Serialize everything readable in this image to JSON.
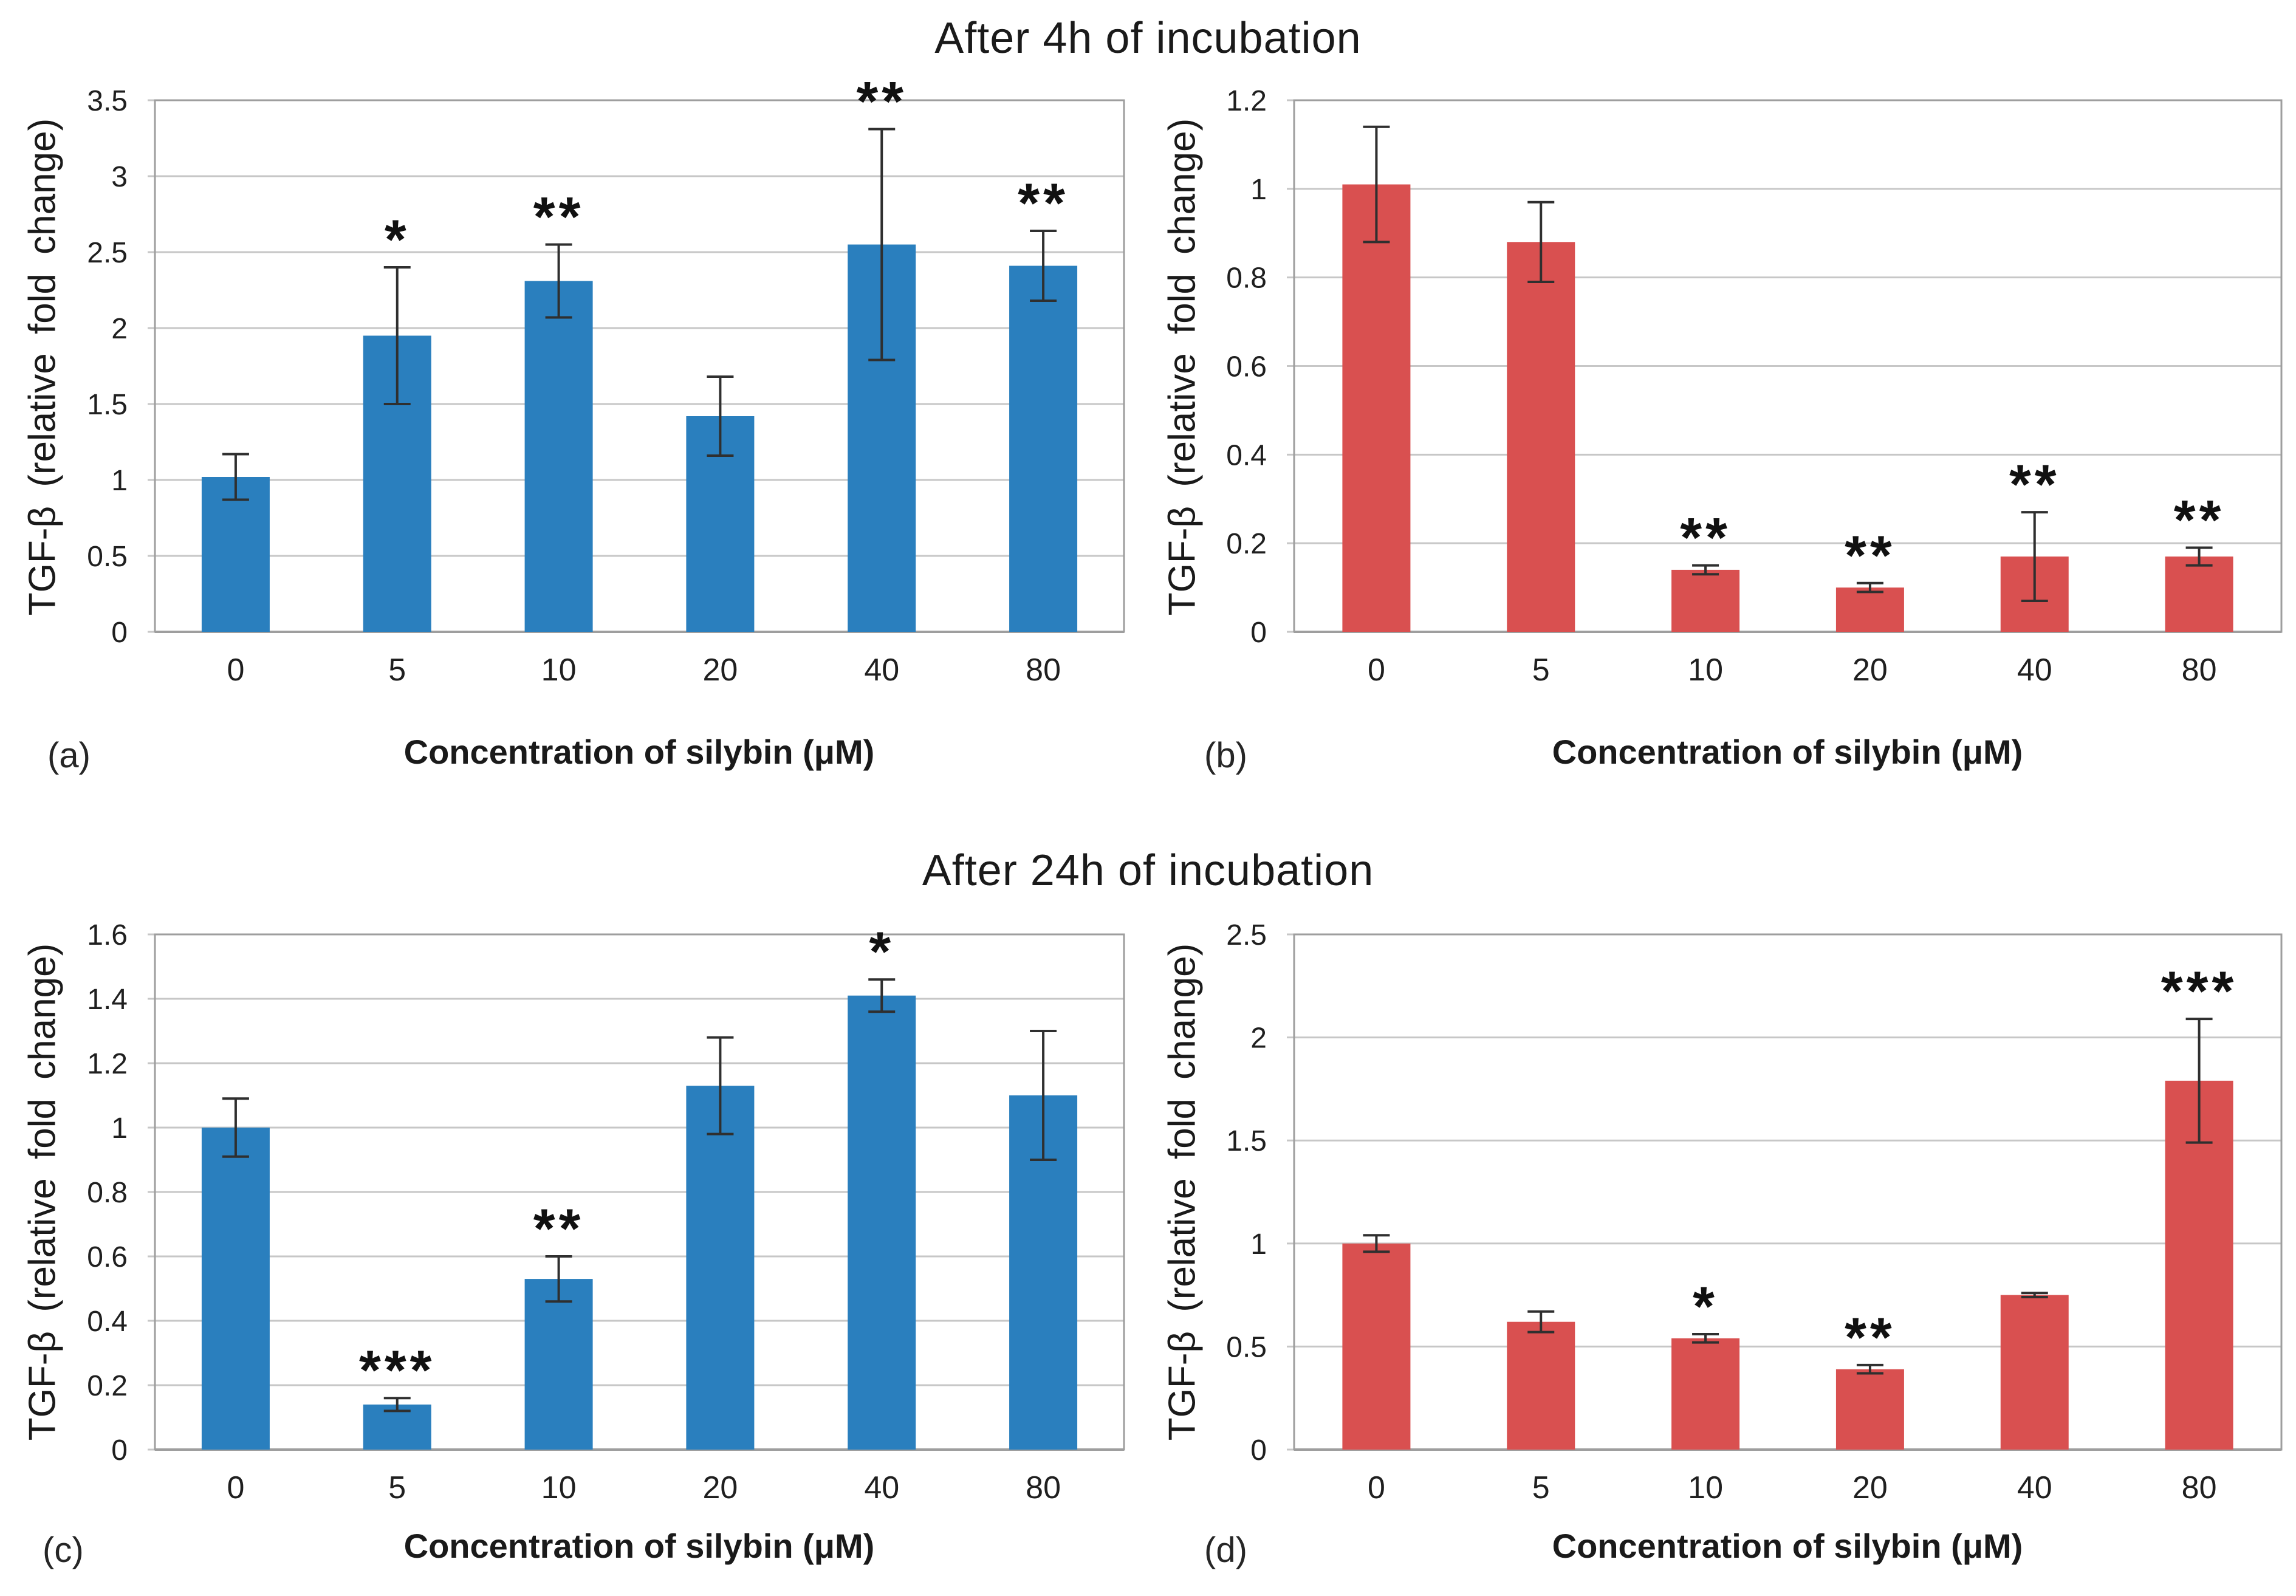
{
  "figure": {
    "title_4h": "After 4h of incubation",
    "title_24h": "After 24h of incubation"
  },
  "axes": {
    "ylabel": "TGF-β  (relative fold change)",
    "xlabel": "Concentration of silybin (μM)"
  },
  "colors": {
    "blue_bar": "#2a7fbe",
    "red_bar": "#d95050",
    "gridline": "#c7c7c7",
    "frame": "#9e9e9e",
    "error_bar": "#2f2f2f",
    "text": "#1f1f1f"
  },
  "chart_data": [
    {
      "id": "a",
      "panel_label": "(a)",
      "group_title": "After 4h of incubation",
      "type": "bar",
      "bar_color": "#2a7fbe",
      "categories": [
        "0",
        "5",
        "10",
        "20",
        "40",
        "80"
      ],
      "values": [
        1.02,
        1.95,
        2.31,
        1.42,
        2.55,
        2.41
      ],
      "errors": [
        0.15,
        0.45,
        0.24,
        0.26,
        0.76,
        0.23
      ],
      "significance": [
        "",
        "*",
        "**",
        "",
        "**",
        "**"
      ],
      "ylim": [
        0,
        3.5
      ],
      "yticks": [
        0,
        0.5,
        1,
        1.5,
        2,
        2.5,
        3,
        3.5
      ],
      "ytick_labels": [
        "0",
        "0.5",
        "1",
        "1.5",
        "2",
        "2.5",
        "3",
        "3.5"
      ],
      "xlabel": "Concentration of silybin (μM)",
      "ylabel": "TGF-β  (relative fold change)",
      "grid": true,
      "legend": "none"
    },
    {
      "id": "b",
      "panel_label": "(b)",
      "group_title": "After 4h of incubation",
      "type": "bar",
      "bar_color": "#d95050",
      "categories": [
        "0",
        "5",
        "10",
        "20",
        "40",
        "80"
      ],
      "values": [
        1.01,
        0.88,
        0.14,
        0.1,
        0.17,
        0.17
      ],
      "errors": [
        0.13,
        0.09,
        0.01,
        0.01,
        0.1,
        0.02
      ],
      "significance": [
        "",
        "",
        "**",
        "**",
        "**",
        "**"
      ],
      "ylim": [
        0,
        1.2
      ],
      "yticks": [
        0,
        0.2,
        0.4,
        0.6,
        0.8,
        1,
        1.2
      ],
      "ytick_labels": [
        "0",
        "0.2",
        "0.4",
        "0.6",
        "0.8",
        "1",
        "1.2"
      ],
      "xlabel": "Concentration of silybin (μM)",
      "ylabel": "TGF-β  (relative fold change)",
      "grid": true,
      "legend": "none"
    },
    {
      "id": "c",
      "panel_label": "(c)",
      "group_title": "After 24h of incubation",
      "type": "bar",
      "bar_color": "#2a7fbe",
      "categories": [
        "0",
        "5",
        "10",
        "20",
        "40",
        "80"
      ],
      "values": [
        1.0,
        0.14,
        0.53,
        1.13,
        1.41,
        1.1
      ],
      "errors": [
        0.09,
        0.02,
        0.07,
        0.15,
        0.05,
        0.2
      ],
      "significance": [
        "",
        "***",
        "**",
        "",
        "*",
        ""
      ],
      "ylim": [
        0,
        1.6
      ],
      "yticks": [
        0,
        0.2,
        0.4,
        0.6,
        0.8,
        1,
        1.2,
        1.4,
        1.6
      ],
      "ytick_labels": [
        "0",
        "0.2",
        "0.4",
        "0.6",
        "0.8",
        "1",
        "1.2",
        "1.4",
        "1.6"
      ],
      "xlabel": "Concentration of silybin (μM)",
      "ylabel": "TGF-β  (relative fold change)",
      "grid": true,
      "legend": "none"
    },
    {
      "id": "d",
      "panel_label": "(d)",
      "group_title": "After 24h of incubation",
      "type": "bar",
      "bar_color": "#d95050",
      "categories": [
        "0",
        "5",
        "10",
        "20",
        "40",
        "80"
      ],
      "values": [
        1.0,
        0.62,
        0.54,
        0.39,
        0.75,
        1.79
      ],
      "errors": [
        0.04,
        0.05,
        0.02,
        0.02,
        0.01,
        0.3
      ],
      "significance": [
        "",
        "",
        "*",
        "**",
        "",
        "***"
      ],
      "ylim": [
        0,
        2.5
      ],
      "yticks": [
        0,
        0.5,
        1,
        1.5,
        2,
        2.5
      ],
      "ytick_labels": [
        "0",
        "0.5",
        "1",
        "1.5",
        "2",
        "2.5"
      ],
      "xlabel": "Concentration of silybin (μM)",
      "ylabel": "TGF-β  (relative fold change)",
      "grid": true,
      "legend": "none"
    }
  ]
}
